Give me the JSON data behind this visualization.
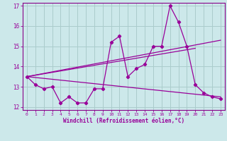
{
  "xlabel": "Windchill (Refroidissement éolien,°C)",
  "bg_color": "#cce8ea",
  "grid_color": "#aacccc",
  "line_color": "#990099",
  "spine_color": "#880088",
  "xlim": [
    -0.5,
    23.5
  ],
  "ylim": [
    11.85,
    17.15
  ],
  "xticks": [
    0,
    1,
    2,
    3,
    4,
    5,
    6,
    7,
    8,
    9,
    10,
    11,
    12,
    13,
    14,
    15,
    16,
    17,
    18,
    19,
    20,
    21,
    22,
    23
  ],
  "yticks": [
    12,
    13,
    14,
    15,
    16,
    17
  ],
  "series1": [
    13.5,
    13.1,
    12.9,
    13.0,
    12.2,
    12.5,
    12.2,
    12.2,
    12.9,
    12.9,
    15.2,
    15.5,
    13.5,
    13.9,
    14.1,
    15.0,
    15.0,
    17.0,
    16.2,
    15.0,
    13.1,
    12.7,
    12.5,
    12.4
  ],
  "series2_x": [
    0,
    23
  ],
  "series2_y": [
    13.5,
    15.3
  ],
  "series3_x": [
    0,
    23
  ],
  "series3_y": [
    13.5,
    12.5
  ],
  "series4_x": [
    0,
    20
  ],
  "series4_y": [
    13.5,
    14.9
  ]
}
